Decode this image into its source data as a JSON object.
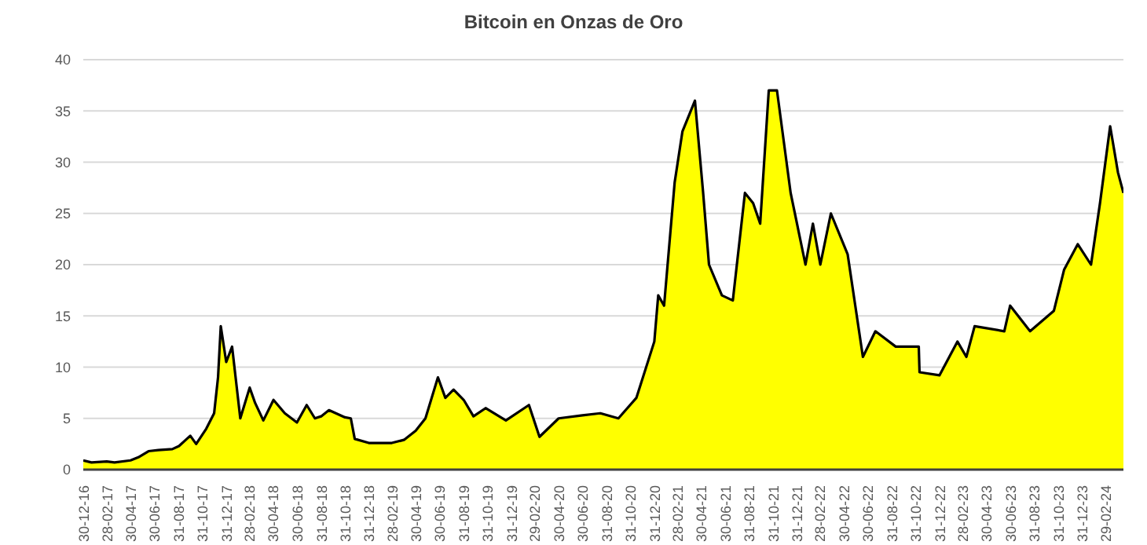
{
  "chart_data": {
    "type": "area",
    "title": "Bitcoin en Onzas de Oro",
    "x": [
      "2016-12-30",
      "2017-01-20",
      "2017-02-28",
      "2017-03-20",
      "2017-04-30",
      "2017-05-20",
      "2017-06-15",
      "2017-07-10",
      "2017-08-15",
      "2017-09-01",
      "2017-09-30",
      "2017-10-15",
      "2017-11-10",
      "2017-11-30",
      "2017-12-10",
      "2017-12-17",
      "2017-12-31",
      "2018-01-15",
      "2018-02-05",
      "2018-03-01",
      "2018-03-15",
      "2018-04-05",
      "2018-05-01",
      "2018-05-30",
      "2018-06-30",
      "2018-07-25",
      "2018-08-15",
      "2018-08-31",
      "2018-09-20",
      "2018-10-31",
      "2018-11-15",
      "2018-11-25",
      "2018-12-31",
      "2019-02-28",
      "2019-03-31",
      "2019-04-30",
      "2019-05-25",
      "2019-06-26",
      "2019-07-15",
      "2019-08-05",
      "2019-08-31",
      "2019-09-25",
      "2019-10-26",
      "2019-12-17",
      "2020-02-14",
      "2020-03-12",
      "2020-04-30",
      "2020-06-30",
      "2020-08-15",
      "2020-09-30",
      "2020-11-15",
      "2020-12-31",
      "2021-01-10",
      "2021-01-25",
      "2021-02-21",
      "2021-03-13",
      "2021-04-14",
      "2021-05-05",
      "2021-05-20",
      "2021-06-22",
      "2021-07-20",
      "2021-08-20",
      "2021-09-10",
      "2021-09-28",
      "2021-10-20",
      "2021-11-10",
      "2021-12-15",
      "2022-01-22",
      "2022-02-10",
      "2022-03-01",
      "2022-03-28",
      "2022-05-10",
      "2022-06-18",
      "2022-07-20",
      "2022-09-10",
      "2022-11-08",
      "2022-11-10",
      "2022-12-31",
      "2023-02-15",
      "2023-03-10",
      "2023-03-31",
      "2023-06-15",
      "2023-06-30",
      "2023-08-20",
      "2023-10-20",
      "2023-11-15",
      "2023-12-20",
      "2024-01-23",
      "2024-02-15",
      "2024-03-12",
      "2024-04-01",
      "2024-04-15"
    ],
    "series": [
      {
        "color": "#ffff00",
        "values": [
          0.9,
          0.7,
          0.8,
          0.7,
          0.9,
          1.2,
          1.8,
          1.9,
          2.0,
          2.3,
          3.3,
          2.5,
          4.0,
          5.5,
          9.0,
          14.0,
          10.5,
          12.0,
          5.0,
          8.0,
          6.5,
          4.8,
          6.8,
          5.5,
          4.6,
          6.3,
          5.0,
          5.2,
          5.8,
          5.1,
          5.0,
          3.0,
          2.6,
          2.6,
          2.9,
          3.8,
          5.0,
          9.0,
          7.0,
          7.8,
          6.8,
          5.2,
          6.0,
          4.8,
          6.3,
          3.2,
          5.0,
          5.3,
          5.5,
          5.0,
          7.0,
          12.5,
          17.0,
          16.0,
          28.0,
          33.0,
          36.0,
          27.0,
          20.0,
          17.0,
          16.5,
          27.0,
          26.0,
          24.0,
          37.0,
          37.0,
          27.0,
          20.0,
          24.0,
          20.0,
          25.0,
          21.0,
          11.0,
          13.5,
          12.0,
          12.0,
          9.5,
          9.2,
          12.5,
          11.0,
          14.0,
          13.5,
          16.0,
          13.5,
          15.5,
          19.5,
          22.0,
          20.0,
          26.0,
          33.5,
          29.0,
          27.0
        ]
      }
    ],
    "xlim": [
      "2016-12-30",
      "2024-04-15"
    ],
    "xticks": [
      {
        "value": "2016-12-30",
        "label": "30-12-16"
      },
      {
        "value": "2017-02-28",
        "label": "28-02-17"
      },
      {
        "value": "2017-04-30",
        "label": "30-04-17"
      },
      {
        "value": "2017-06-30",
        "label": "30-06-17"
      },
      {
        "value": "2017-08-31",
        "label": "31-08-17"
      },
      {
        "value": "2017-10-31",
        "label": "31-10-17"
      },
      {
        "value": "2017-12-31",
        "label": "31-12-17"
      },
      {
        "value": "2018-02-28",
        "label": "28-02-18"
      },
      {
        "value": "2018-04-30",
        "label": "30-04-18"
      },
      {
        "value": "2018-06-30",
        "label": "30-06-18"
      },
      {
        "value": "2018-08-31",
        "label": "31-08-18"
      },
      {
        "value": "2018-10-31",
        "label": "31-10-18"
      },
      {
        "value": "2018-12-31",
        "label": "31-12-18"
      },
      {
        "value": "2019-02-28",
        "label": "28-02-19"
      },
      {
        "value": "2019-04-30",
        "label": "30-04-19"
      },
      {
        "value": "2019-06-30",
        "label": "30-06-19"
      },
      {
        "value": "2019-08-31",
        "label": "31-08-19"
      },
      {
        "value": "2019-10-31",
        "label": "31-10-19"
      },
      {
        "value": "2019-12-31",
        "label": "31-12-19"
      },
      {
        "value": "2020-02-29",
        "label": "29-02-20"
      },
      {
        "value": "2020-04-30",
        "label": "30-04-20"
      },
      {
        "value": "2020-06-30",
        "label": "30-06-20"
      },
      {
        "value": "2020-08-31",
        "label": "31-08-20"
      },
      {
        "value": "2020-10-31",
        "label": "31-10-20"
      },
      {
        "value": "2020-12-31",
        "label": "31-12-20"
      },
      {
        "value": "2021-02-28",
        "label": "28-02-21"
      },
      {
        "value": "2021-04-30",
        "label": "30-04-21"
      },
      {
        "value": "2021-06-30",
        "label": "30-06-21"
      },
      {
        "value": "2021-08-31",
        "label": "31-08-21"
      },
      {
        "value": "2021-10-31",
        "label": "31-10-21"
      },
      {
        "value": "2021-12-31",
        "label": "31-12-21"
      },
      {
        "value": "2022-02-28",
        "label": "28-02-22"
      },
      {
        "value": "2022-04-30",
        "label": "30-04-22"
      },
      {
        "value": "2022-06-30",
        "label": "30-06-22"
      },
      {
        "value": "2022-08-31",
        "label": "31-08-22"
      },
      {
        "value": "2022-10-31",
        "label": "31-10-22"
      },
      {
        "value": "2022-12-31",
        "label": "31-12-22"
      },
      {
        "value": "2023-02-28",
        "label": "28-02-23"
      },
      {
        "value": "2023-04-30",
        "label": "30-04-23"
      },
      {
        "value": "2023-06-30",
        "label": "30-06-23"
      },
      {
        "value": "2023-08-31",
        "label": "31-08-23"
      },
      {
        "value": "2023-10-31",
        "label": "31-10-23"
      },
      {
        "value": "2023-12-31",
        "label": "31-12-23"
      },
      {
        "value": "2024-02-29",
        "label": "29-02-24"
      }
    ],
    "ylim": [
      0,
      40
    ],
    "yticks": [
      0,
      5,
      10,
      15,
      20,
      25,
      30,
      35,
      40
    ],
    "grid": "y"
  }
}
